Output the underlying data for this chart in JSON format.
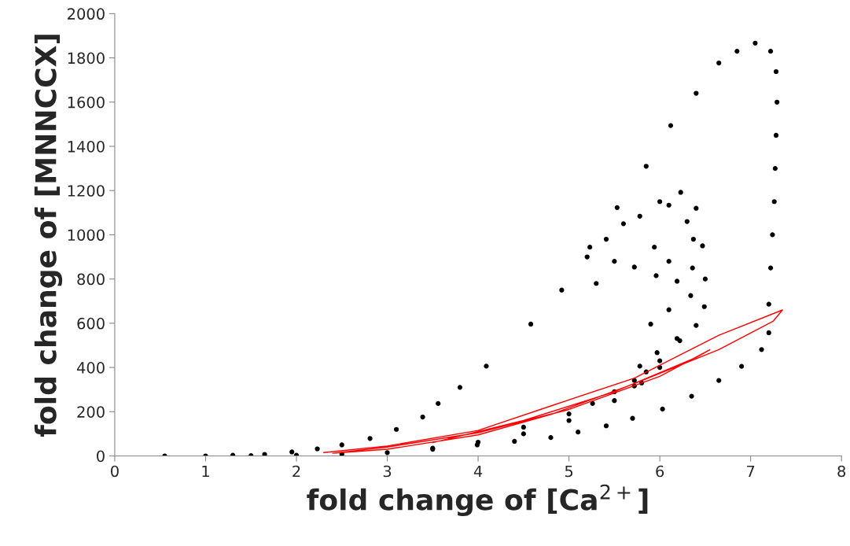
{
  "chart_data": {
    "type": "scatter",
    "xlabel": "fold change of [Ca$^{2+}$]",
    "ylabel": "fold change of [MNNCCX]",
    "xlim": [
      0,
      8
    ],
    "xticks": [
      0,
      1,
      2,
      3,
      4,
      5,
      6,
      7,
      8
    ],
    "ylim": [
      0,
      2000
    ],
    "yticks": [
      0,
      200,
      400,
      600,
      800,
      1000,
      1200,
      1400,
      1600,
      1800,
      2000
    ],
    "grid": false,
    "legend": false,
    "series": [
      {
        "color": "#000000",
        "marker": "circle",
        "x": [
          0.55,
          1,
          1.5,
          2,
          2.5,
          3,
          3.5,
          3.99,
          4.4,
          4.8,
          5.1,
          5.41,
          5.7,
          6.03,
          6.35,
          6.65,
          6.9,
          7.12,
          7.2,
          7.2,
          7.22,
          7.24,
          7.26,
          7.27,
          7.28,
          7.29,
          7.28,
          7.22,
          7.05,
          6.85,
          6.65,
          6.4,
          6.12,
          5.85,
          5.53,
          5.23,
          4.92,
          4.58,
          4.09,
          3.8,
          3.56,
          3.39,
          3.1,
          2.81,
          2.5,
          2.23,
          1.95,
          1.65,
          1.3,
          5.41,
          5.78,
          6.0,
          6.23,
          6.4,
          6.47,
          6.5,
          6.49,
          6.4,
          6.22,
          6.0,
          5.72,
          5.5,
          5.26,
          5.0,
          4.5,
          5.2,
          5.6,
          6.1,
          6.3,
          6.37,
          6.36,
          6.34,
          6.19,
          6.0,
          5.8,
          5.5,
          5.94,
          6.1,
          6.19,
          6.1,
          5.97,
          5.85,
          5.3,
          5.72,
          5.96,
          5.9,
          5.78,
          5.72,
          5.5,
          5.0,
          4.5,
          4.0,
          3.5
        ],
        "values": [
          0,
          0,
          1,
          3,
          8,
          15,
          30,
          50,
          66,
          83,
          108,
          136,
          170,
          212,
          270,
          341,
          405,
          481,
          557,
          686,
          850,
          1000,
          1150,
          1300,
          1450,
          1600,
          1738,
          1830,
          1867,
          1830,
          1777,
          1640,
          1494,
          1310,
          1123,
          944,
          750,
          596,
          406,
          310,
          237,
          176,
          120,
          79,
          50,
          32,
          18,
          7,
          3,
          980,
          1084,
          1150,
          1192,
          1120,
          950,
          800,
          675,
          590,
          521,
          430,
          341,
          290,
          237,
          190,
          130,
          900,
          1050,
          1134,
          1060,
          980,
          850,
          725,
          531,
          400,
          330,
          880,
          944,
          880,
          790,
          661,
          467,
          380,
          780,
          854,
          815,
          596,
          406,
          316,
          250,
          160,
          100,
          62,
          35
        ]
      },
      {
        "type": "line",
        "color": "#ff0000",
        "marker": "none",
        "line_style": "solid",
        "x": [
          2.3,
          3,
          4,
          4.8,
          5.72,
          6.65,
          7.35,
          7.25,
          6.65,
          5.72,
          4.8,
          4,
          3,
          2.4,
          3,
          4,
          5,
          6,
          6.55,
          6.4,
          5.5,
          4.5,
          3.5
        ],
        "values": [
          15,
          45,
          115,
          226,
          352,
          546,
          660,
          610,
          481,
          327,
          187,
          95,
          30,
          12,
          40,
          105,
          210,
          360,
          480,
          445,
          290,
          160,
          60
        ]
      }
    ]
  }
}
